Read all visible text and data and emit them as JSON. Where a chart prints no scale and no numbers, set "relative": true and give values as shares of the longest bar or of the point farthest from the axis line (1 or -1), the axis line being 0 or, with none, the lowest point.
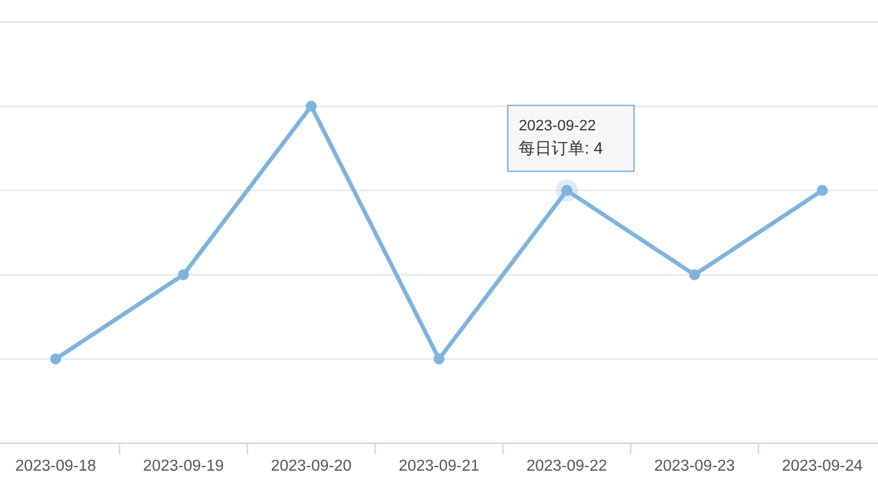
{
  "chart_data": {
    "type": "line",
    "relative": true,
    "categories": [
      "2023-09-18",
      "2023-09-19",
      "2023-09-20",
      "2023-09-21",
      "2023-09-22",
      "2023-09-23",
      "2023-09-24"
    ],
    "series": [
      {
        "color": "#7eb3de",
        "values": [
          0.25,
          0.5,
          1,
          0.25,
          0.75,
          0.5,
          0.75
        ]
      }
    ],
    "marker": "circle",
    "grid": "y",
    "annotations": [
      {
        "text": "2023-09-22\n每日订单: 4",
        "x": "2023-09-22",
        "y": 0.75
      }
    ]
  }
}
